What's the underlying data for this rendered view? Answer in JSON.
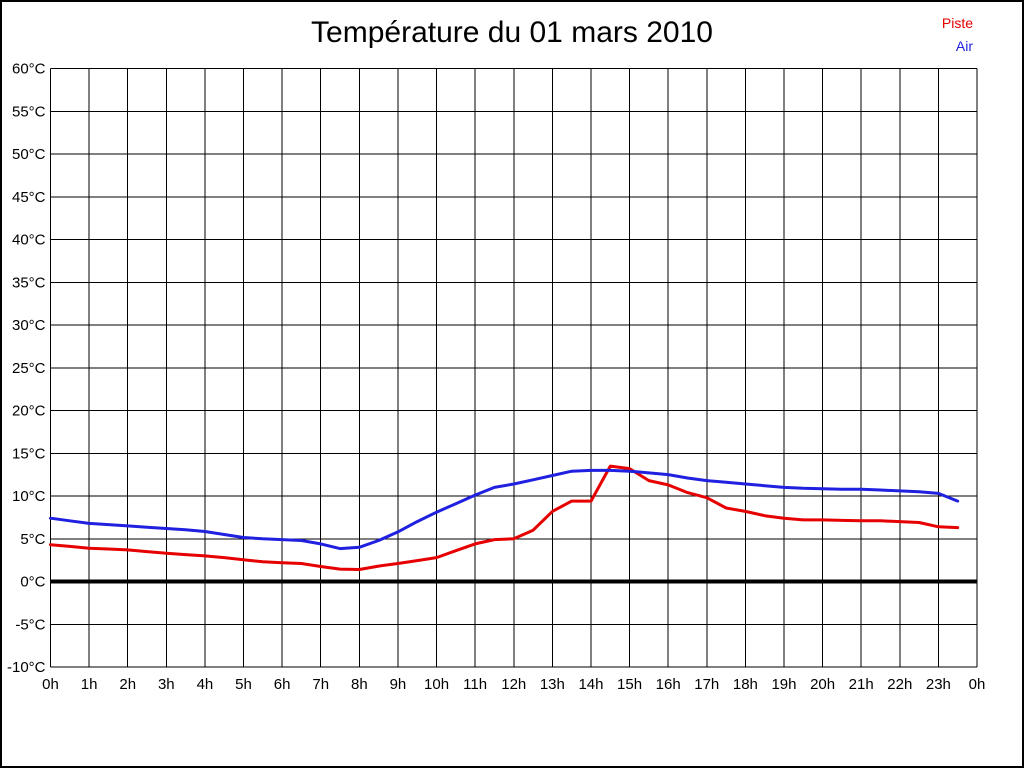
{
  "chart_data": {
    "type": "line",
    "title": "Température du 01 mars 2010",
    "legend_position": "top-right",
    "grid": true,
    "xlim": [
      0,
      24
    ],
    "ylim": [
      -10,
      60
    ],
    "x_tick_step": 1,
    "y_tick_step": 5,
    "x_tick_labels": [
      "0h",
      "1h",
      "2h",
      "3h",
      "4h",
      "5h",
      "6h",
      "7h",
      "8h",
      "9h",
      "10h",
      "11h",
      "12h",
      "13h",
      "14h",
      "15h",
      "16h",
      "17h",
      "18h",
      "19h",
      "20h",
      "21h",
      "22h",
      "23h",
      "0h"
    ],
    "y_tick_labels": [
      "60°C",
      "55°C",
      "50°C",
      "45°C",
      "40°C",
      "35°C",
      "30°C",
      "25°C",
      "20°C",
      "15°C",
      "10°C",
      "5°C",
      "0°C",
      "-5°C",
      "-10°C"
    ],
    "zero_line": {
      "value": 0,
      "color": "#000000",
      "width": 4
    },
    "x": [
      0,
      0.5,
      1,
      1.5,
      2,
      2.5,
      3,
      3.5,
      4,
      4.5,
      5,
      5.5,
      6,
      6.5,
      7,
      7.5,
      8,
      8.5,
      9,
      9.5,
      10,
      10.5,
      11,
      11.5,
      12,
      12.5,
      13,
      13.5,
      14,
      14.5,
      15,
      15.5,
      16,
      16.5,
      17,
      17.5,
      18,
      18.5,
      19,
      19.5,
      20,
      20.5,
      21,
      21.5,
      22,
      22.5,
      23,
      23.5
    ],
    "series": [
      {
        "name": "Piste",
        "color": "#e60000",
        "values": [
          4.3,
          4.1,
          3.9,
          3.8,
          3.7,
          3.5,
          3.3,
          3.15,
          3.0,
          2.8,
          2.55,
          2.3,
          2.2,
          2.1,
          1.75,
          1.45,
          1.4,
          1.8,
          2.1,
          2.45,
          2.8,
          3.6,
          4.4,
          4.9,
          5.0,
          6.0,
          8.2,
          9.4,
          9.4,
          13.5,
          13.2,
          11.8,
          11.3,
          10.4,
          9.8,
          8.6,
          8.2,
          7.7,
          7.4,
          7.2,
          7.2,
          7.15,
          7.1,
          7.1,
          7.0,
          6.9,
          6.4,
          6.3
        ]
      },
      {
        "name": "Air",
        "color": "#2020e0",
        "values": [
          7.4,
          7.1,
          6.8,
          6.65,
          6.5,
          6.35,
          6.2,
          6.05,
          5.85,
          5.5,
          5.15,
          5.0,
          4.9,
          4.8,
          4.4,
          3.85,
          4.0,
          4.8,
          5.8,
          7.0,
          8.1,
          9.1,
          10.1,
          11.0,
          11.4,
          11.9,
          12.4,
          12.9,
          13.0,
          13.0,
          12.9,
          12.7,
          12.5,
          12.1,
          11.8,
          11.6,
          11.4,
          11.2,
          11.0,
          10.9,
          10.85,
          10.8,
          10.8,
          10.7,
          10.6,
          10.5,
          10.3,
          9.4
        ]
      }
    ]
  }
}
